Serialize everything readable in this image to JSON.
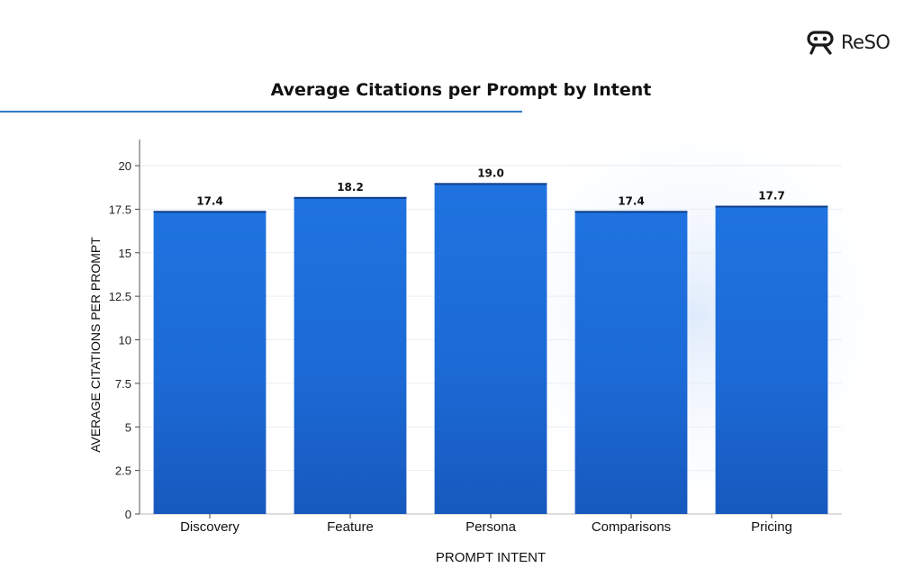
{
  "brand": {
    "name": "ReSO"
  },
  "chart_data": {
    "type": "bar",
    "title": "Average Citations per Prompt by Intent",
    "xlabel": "PROMPT INTENT",
    "ylabel": "AVERAGE CITATIONS PER PROMPT",
    "categories": [
      "Discovery",
      "Feature",
      "Persona",
      "Comparisons",
      "Pricing"
    ],
    "values": [
      17.4,
      18.2,
      19.0,
      17.4,
      17.7
    ],
    "value_labels": [
      "17.4",
      "18.2",
      "19.0",
      "17.4",
      "17.7"
    ],
    "ylim": [
      0,
      21.5
    ],
    "yticks": [
      0,
      2.5,
      5,
      7.5,
      10,
      12.5,
      15,
      17.5,
      20
    ],
    "ytick_labels": [
      "0",
      "2.5",
      "5",
      "7.5",
      "10",
      "12.5",
      "15",
      "17.5",
      "20"
    ],
    "grid": true,
    "bar_color": "#1e6ed8"
  }
}
